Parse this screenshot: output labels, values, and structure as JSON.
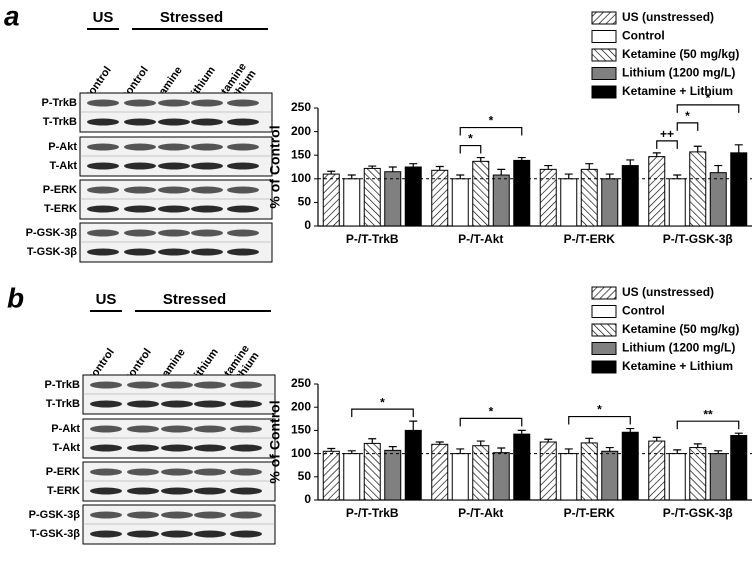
{
  "blots": [
    {
      "letter": "a",
      "groups": [
        "US",
        "Stressed"
      ],
      "lanes": [
        [
          "Control"
        ],
        [
          "Control"
        ],
        [
          "Ketamine"
        ],
        [
          "Lithium"
        ],
        [
          "Ketamine",
          "+ Lithium"
        ]
      ],
      "rows": [
        [
          "P-TrkB",
          "T-TrkB"
        ],
        [
          "P-Akt",
          "T-Akt"
        ],
        [
          "P-ERK",
          "T-ERK"
        ],
        [
          "P-GSK-3β",
          "T-GSK-3β"
        ]
      ]
    },
    {
      "letter": "b",
      "groups": [
        "US",
        "Stressed"
      ],
      "lanes": [
        [
          "Control"
        ],
        [
          "Control"
        ],
        [
          "Ketamine"
        ],
        [
          "Lithium"
        ],
        [
          "Ketamine",
          "+ Lithium"
        ]
      ],
      "rows": [
        [
          "P-TrkB",
          "T-TrkB"
        ],
        [
          "P-Akt",
          "T-Akt"
        ],
        [
          "P-ERK",
          "T-ERK"
        ],
        [
          "P-GSK-3β",
          "T-GSK-3β"
        ]
      ]
    }
  ],
  "chart_data": [
    {
      "type": "bar",
      "y_label": "% of Control",
      "categories": [
        "P-/T-TrkB",
        "P-/T-Akt",
        "P-/T-ERK",
        "P-/T-GSK-3β"
      ],
      "ylim": [
        0,
        250
      ],
      "yticks": [
        0,
        50,
        100,
        150,
        200,
        250
      ],
      "reference_line": 100,
      "legend": "top-right",
      "series": [
        {
          "name": "US (unstressed)",
          "color": "#ffffff",
          "hatch": "/",
          "values": [
            110,
            118,
            120,
            147
          ],
          "errors": [
            6,
            8,
            8,
            8
          ]
        },
        {
          "name": "Control",
          "color": "#ffffff",
          "values": [
            100,
            100,
            100,
            100
          ],
          "errors": [
            8,
            8,
            10,
            8
          ]
        },
        {
          "name": "Ketamine (50 mg/kg)",
          "color": "#ffffff",
          "hatch": "\\",
          "values": [
            122,
            137,
            120,
            157
          ],
          "errors": [
            5,
            8,
            12,
            12
          ]
        },
        {
          "name": "Lithium (1200 mg/L)",
          "color": "#808080",
          "values": [
            115,
            108,
            100,
            113
          ],
          "errors": [
            10,
            12,
            10,
            15
          ]
        },
        {
          "name": "Ketamine + Lithium",
          "color": "#000000",
          "values": [
            125,
            139,
            128,
            155
          ],
          "errors": [
            7,
            6,
            12,
            17
          ]
        }
      ],
      "annotations": [
        {
          "text": "*",
          "category": 1,
          "series": [
            1,
            2
          ]
        },
        {
          "text": "*",
          "category": 1,
          "series": [
            1,
            4
          ]
        },
        {
          "text": "++",
          "category": 3,
          "series": [
            0,
            1
          ]
        },
        {
          "text": "*",
          "category": 3,
          "series": [
            1,
            2
          ]
        },
        {
          "text": "*",
          "category": 3,
          "series": [
            1,
            4
          ]
        }
      ]
    },
    {
      "type": "bar",
      "y_label": "% of Control",
      "categories": [
        "P-/T-TrkB",
        "P-/T-Akt",
        "P-/T-ERK",
        "P-/T-GSK-3β"
      ],
      "ylim": [
        0,
        250
      ],
      "yticks": [
        0,
        50,
        100,
        150,
        200,
        250
      ],
      "reference_line": 100,
      "legend": "top-right",
      "series": [
        {
          "name": "US (unstressed)",
          "color": "#ffffff",
          "hatch": "/",
          "values": [
            105,
            120,
            125,
            127
          ],
          "errors": [
            6,
            5,
            6,
            8
          ]
        },
        {
          "name": "Control",
          "color": "#ffffff",
          "values": [
            100,
            100,
            100,
            100
          ],
          "errors": [
            6,
            10,
            10,
            8
          ]
        },
        {
          "name": "Ketamine (50 mg/kg)",
          "color": "#ffffff",
          "hatch": "\\",
          "values": [
            122,
            117,
            123,
            113
          ],
          "errors": [
            10,
            10,
            10,
            8
          ]
        },
        {
          "name": "Lithium (1200 mg/L)",
          "color": "#808080",
          "values": [
            107,
            102,
            105,
            100
          ],
          "errors": [
            8,
            10,
            8,
            6
          ]
        },
        {
          "name": "Ketamine + Lithium",
          "color": "#000000",
          "values": [
            150,
            142,
            146,
            139
          ],
          "errors": [
            20,
            8,
            8,
            5
          ]
        }
      ],
      "annotations": [
        {
          "text": "*",
          "category": 0,
          "series": [
            1,
            4
          ]
        },
        {
          "text": "*",
          "category": 1,
          "series": [
            1,
            4
          ]
        },
        {
          "text": "*",
          "category": 2,
          "series": [
            1,
            4
          ]
        },
        {
          "text": "**",
          "category": 3,
          "series": [
            1,
            4
          ]
        }
      ]
    }
  ]
}
